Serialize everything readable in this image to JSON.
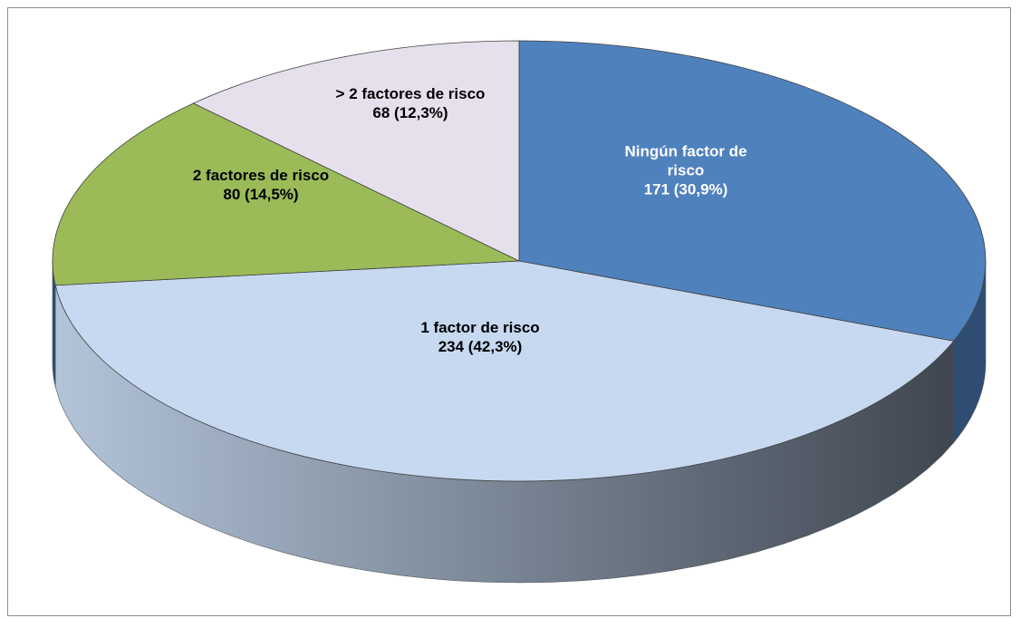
{
  "chart_data": {
    "type": "pie",
    "categories": [
      "Ningún factor de risco",
      "1 factor de risco",
      "2 factores de risco",
      "> 2 factores de risco"
    ],
    "values": [
      171,
      234,
      80,
      68
    ],
    "value_labels": [
      "171 (30,9%)",
      "234 (42,3%)",
      "80 (14,5%)",
      "68 (12,3%)"
    ],
    "colors": [
      "#4f81bd",
      "#c6d9f0",
      "#9bbb59",
      "#e6e0ec"
    ]
  }
}
